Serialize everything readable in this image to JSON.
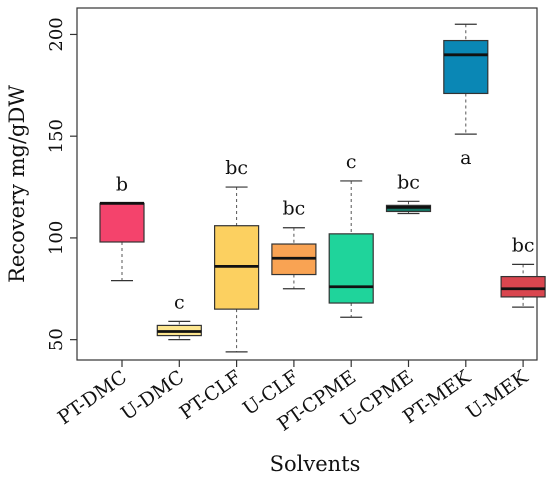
{
  "chart_data": {
    "type": "box",
    "title": "",
    "xlabel": "Solvents",
    "ylabel": "Recovery mg/gDW",
    "ylim": [
      40,
      213
    ],
    "yticks": [
      50,
      100,
      150,
      200
    ],
    "grid": false,
    "categories": [
      "PT-DMC",
      "U-DMC",
      "PT-CLF",
      "U-CLF",
      "PT-CPME",
      "U-CPME",
      "PT-MEK",
      "U-MEK"
    ],
    "boxes": [
      {
        "category": "PT-DMC",
        "min": 79,
        "q1": 98,
        "median": 117,
        "q3": 117,
        "max": 117,
        "letter": "b",
        "color": "#f4436c"
      },
      {
        "category": "U-DMC",
        "min": 50,
        "q1": 52,
        "median": 54,
        "q3": 57,
        "max": 59,
        "letter": "c",
        "color": "#fde68f"
      },
      {
        "category": "PT-CLF",
        "min": 44,
        "q1": 65,
        "median": 86,
        "q3": 106,
        "max": 125,
        "letter": "bc",
        "color": "#fcd060"
      },
      {
        "category": "U-CLF",
        "min": 75,
        "q1": 82,
        "median": 90,
        "q3": 97,
        "max": 105,
        "letter": "bc",
        "color": "#f9a353"
      },
      {
        "category": "PT-CPME",
        "min": 61,
        "q1": 68,
        "median": 76,
        "q3": 102,
        "max": 128,
        "letter": "c",
        "color": "#1fd49b"
      },
      {
        "category": "U-CPME",
        "min": 112,
        "q1": 113,
        "median": 115,
        "q3": 116,
        "max": 118,
        "letter": "bc",
        "color": "#137a68"
      },
      {
        "category": "PT-MEK",
        "min": 151,
        "q1": 171,
        "median": 190,
        "q3": 197,
        "max": 205,
        "letter": "a",
        "color": "#0a87b5"
      },
      {
        "category": "U-MEK",
        "min": 66,
        "q1": 71,
        "median": 75,
        "q3": 81,
        "max": 87,
        "letter": "bc",
        "color": "#d9464f"
      }
    ]
  }
}
